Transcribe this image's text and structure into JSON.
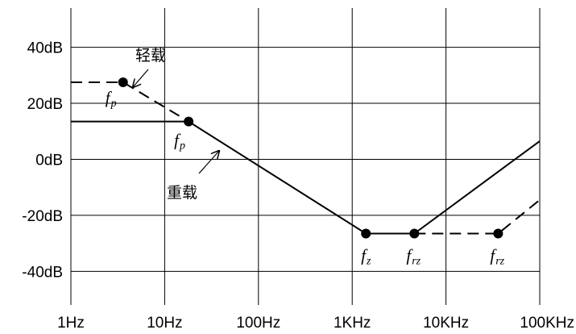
{
  "chart_data": {
    "type": "line",
    "title": "",
    "xlabel": "",
    "ylabel": "",
    "x_scale": "log",
    "xlim": [
      1,
      100000
    ],
    "ylim": [
      -52,
      54
    ],
    "grid": true,
    "x_ticks": [
      {
        "value": 1,
        "label": "1Hz"
      },
      {
        "value": 10,
        "label": "10Hz"
      },
      {
        "value": 100,
        "label": "100Hz"
      },
      {
        "value": 1000,
        "label": "1KHz"
      },
      {
        "value": 10000,
        "label": "10KHz"
      },
      {
        "value": 100000,
        "label": "100KHz"
      }
    ],
    "y_ticks": [
      {
        "value": 40,
        "label": "40dB"
      },
      {
        "value": 20,
        "label": "20dB"
      },
      {
        "value": 0,
        "label": "0dB"
      },
      {
        "value": -20,
        "label": "-20dB"
      },
      {
        "value": -40,
        "label": "-40dB"
      }
    ],
    "series": [
      {
        "name": "重载",
        "dash": "solid",
        "points": [
          [
            1,
            13.5
          ],
          [
            18,
            13.5
          ],
          [
            1400,
            -26.5
          ],
          [
            4600,
            -26.5
          ],
          [
            100000,
            6.5
          ]
        ]
      },
      {
        "name": "轻载",
        "dash": "dashed",
        "points": [
          [
            1,
            27.5
          ],
          [
            3.6,
            27.5
          ],
          [
            18,
            13.5
          ]
        ],
        "points_tail": [
          [
            4600,
            -26.5
          ],
          [
            36000,
            -26.5
          ],
          [
            100000,
            -14.5
          ]
        ]
      }
    ],
    "markers": [
      {
        "x": 3.6,
        "y": 27.5,
        "label": "f",
        "sub": "p"
      },
      {
        "x": 18,
        "y": 13.5,
        "label": "f",
        "sub": "p"
      },
      {
        "x": 1400,
        "y": -26.5,
        "label": "f",
        "sub": "z"
      },
      {
        "x": 4600,
        "y": -26.5,
        "label": "f",
        "sub": "rz"
      },
      {
        "x": 36000,
        "y": -26.5,
        "label": "f",
        "sub": "rz"
      }
    ],
    "annotations": [
      {
        "text": "轻载",
        "target": "light"
      },
      {
        "text": "重载",
        "target": "heavy"
      }
    ]
  }
}
